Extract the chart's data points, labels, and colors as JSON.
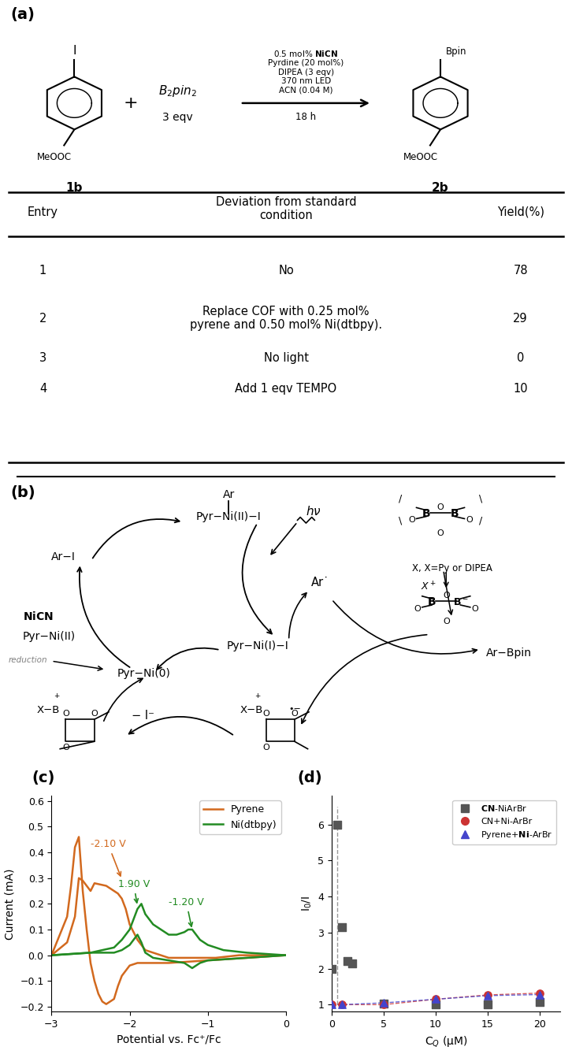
{
  "panel_a_label": "(a)",
  "panel_b_label": "(b)",
  "panel_c_label": "(c)",
  "panel_d_label": "(d)",
  "cv_pyrene_color": "#D2691E",
  "cv_ni_color": "#228B22",
  "cv_xlabel": "Potential vs. Fc⁺/Fc",
  "cv_ylabel": "Current (mA)",
  "cv_xlim": [
    -3.0,
    0.0
  ],
  "cv_ylim": [
    -0.22,
    0.62
  ],
  "sv_data_cn_ni_x": [
    0.0,
    0.5,
    1.0,
    1.5,
    2.0,
    5.0,
    10.0,
    15.0,
    20.0
  ],
  "sv_data_cn_ni_y": [
    2.0,
    6.0,
    3.15,
    2.2,
    2.15,
    1.02,
    1.0,
    1.0,
    1.08
  ],
  "sv_data_cn_x": [
    0.0,
    1.0,
    5.0,
    10.0,
    15.0,
    20.0
  ],
  "sv_data_cn_y": [
    1.0,
    1.0,
    1.0,
    1.15,
    1.27,
    1.32
  ],
  "sv_data_pyrene_x": [
    0.0,
    1.0,
    5.0,
    10.0,
    15.0,
    20.0
  ],
  "sv_data_pyrene_y": [
    1.0,
    1.0,
    1.05,
    1.15,
    1.25,
    1.28
  ],
  "sv_xlabel": "C$_Q$ (μM)",
  "sv_ylabel": "I$_0$/I",
  "sv_xlim": [
    0,
    22
  ],
  "sv_ylim": [
    0.8,
    6.5
  ],
  "sv_legend": [
    "CN-NiArBr",
    "CN+Ni-ArBr",
    "Pyrene+Ni-ArBr"
  ],
  "sv_colors": [
    "#555555",
    "#CC3333",
    "#4444CC"
  ],
  "background_color": "#ffffff",
  "table_entries": [
    "1",
    "2",
    "3",
    "4"
  ],
  "table_deviations": [
    "No",
    "Replace COF with 0.25 mol%\npyrene and 0.50 mol% Ni(dtbpy).",
    "No light",
    "Add 1 eqv TEMPO"
  ],
  "table_yields": [
    "78",
    "29",
    "0",
    "10"
  ]
}
